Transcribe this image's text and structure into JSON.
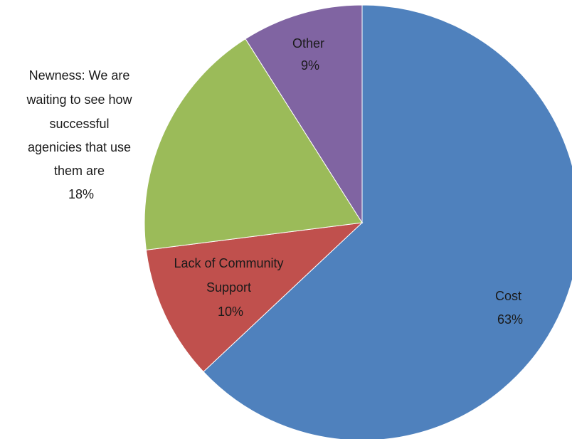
{
  "chart_data": {
    "type": "pie",
    "title": "",
    "start_angle_deg": 0,
    "direction": "clockwise",
    "slices": [
      {
        "label": "Cost",
        "value": 63,
        "percent_label": "63%",
        "color": "#4F81BD"
      },
      {
        "label": "Lack of Community Support",
        "value": 10,
        "percent_label": "10%",
        "color": "#C0504D"
      },
      {
        "label": "Newness: We are waiting to see how successful agenicies that use them are",
        "value": 18,
        "percent_label": "18%",
        "color": "#9BBB59"
      },
      {
        "label": "Other",
        "value": 9,
        "percent_label": "9%",
        "color": "#8064A2"
      }
    ]
  }
}
